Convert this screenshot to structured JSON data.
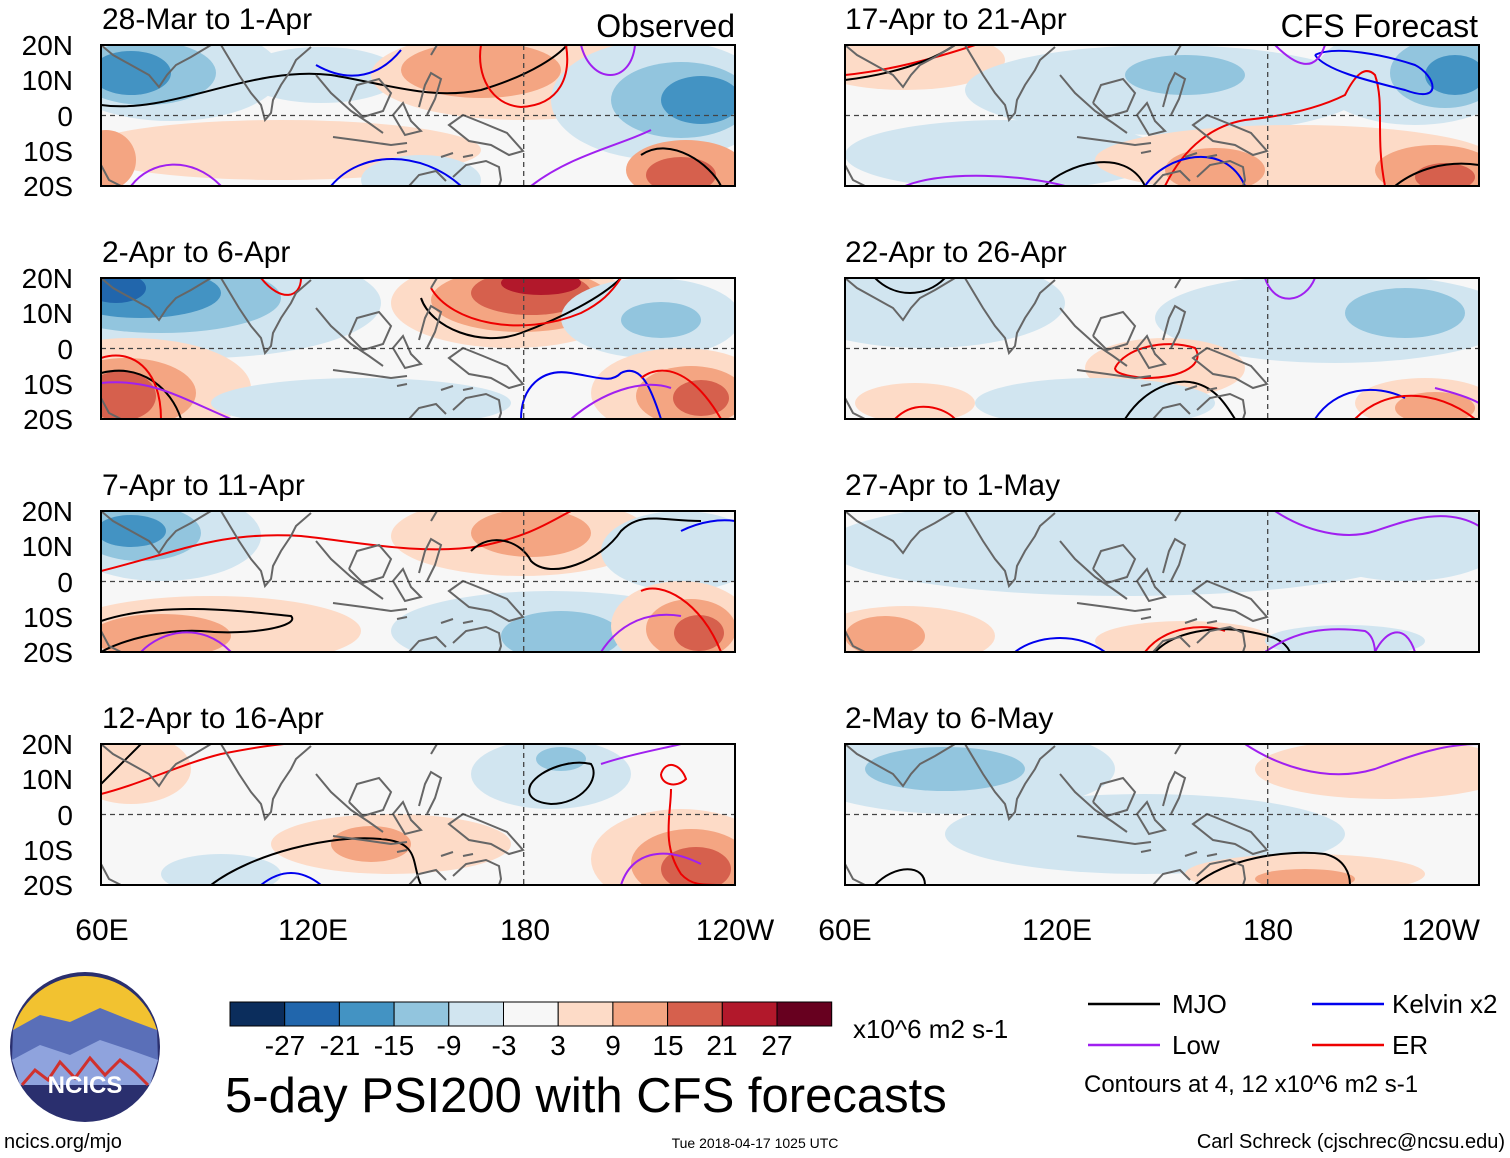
{
  "figure": {
    "main_title": "5-day PSI200 with CFS forecasts",
    "website": "ncics.org/mjo",
    "timestamp": "Tue 2018-04-17 1025 UTC",
    "author": "Carl Schreck (cjschrec@ncsu.edu)",
    "logo_text": "NCICS"
  },
  "columns": [
    {
      "label": "Observed"
    },
    {
      "label": "CFS Forecast"
    }
  ],
  "panels": [
    {
      "col": 0,
      "row": 0,
      "title": "28-Mar to 1-Apr"
    },
    {
      "col": 0,
      "row": 1,
      "title": "2-Apr to 6-Apr"
    },
    {
      "col": 0,
      "row": 2,
      "title": "7-Apr to 11-Apr"
    },
    {
      "col": 0,
      "row": 3,
      "title": "12-Apr to 16-Apr"
    },
    {
      "col": 1,
      "row": 0,
      "title": "17-Apr to 21-Apr"
    },
    {
      "col": 1,
      "row": 1,
      "title": "22-Apr to 26-Apr"
    },
    {
      "col": 1,
      "row": 2,
      "title": "27-Apr to 1-May"
    },
    {
      "col": 1,
      "row": 3,
      "title": "2-May to 6-May"
    }
  ],
  "axes": {
    "lat_labels": [
      "20N",
      "10N",
      "0",
      "10S",
      "20S"
    ],
    "lon_labels": [
      "60E",
      "120E",
      "180",
      "120W"
    ],
    "lat_range": [
      -20,
      20
    ],
    "lon_range": [
      60,
      240
    ]
  },
  "colorbar": {
    "ticks": [
      "-27",
      "-21",
      "-15",
      "-9",
      "-3",
      "3",
      "9",
      "15",
      "21",
      "27"
    ],
    "colors": [
      "#0b2d5c",
      "#2166ac",
      "#4393c3",
      "#92c5de",
      "#d1e5f0",
      "#f7f7f7",
      "#fddbc7",
      "#f4a582",
      "#d6604d",
      "#b2182b",
      "#67001f"
    ],
    "units": "x10^6 m2 s-1"
  },
  "legend": {
    "items": [
      {
        "label": "MJO",
        "color": "#000000"
      },
      {
        "label": "Kelvin x2",
        "color": "#0000ee"
      },
      {
        "label": "Low",
        "color": "#a020f0"
      },
      {
        "label": "ER",
        "color": "#ee0000"
      }
    ],
    "note": "Contours at 4, 12 x10^6 m2 s-1"
  }
}
